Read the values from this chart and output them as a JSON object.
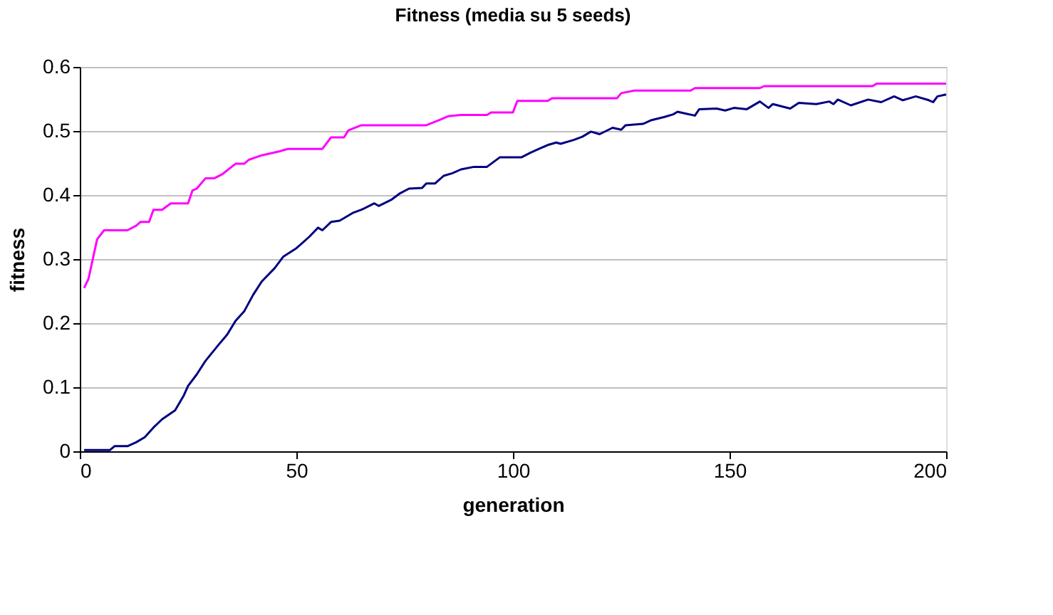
{
  "chart_data": {
    "type": "line",
    "title": "Fitness (media su 5 seeds)",
    "xlabel": "generation",
    "ylabel": "fitness",
    "xlim": [
      0,
      200
    ],
    "xticks": [
      0,
      50,
      100,
      150,
      200
    ],
    "ylim": [
      0,
      0.6
    ],
    "yticks": [
      0,
      0.1,
      0.2,
      0.3,
      0.4,
      0.5,
      0.6
    ],
    "grid": "y",
    "legend": false,
    "marker": "none",
    "line_style": "solid",
    "series": [
      {
        "color": "#ff00ff",
        "x": [
          1,
          2,
          4,
          5.6,
          11,
          13,
          14,
          16,
          17,
          19,
          21,
          25,
          26,
          27,
          29,
          31,
          33,
          36,
          38,
          39,
          42,
          46,
          48,
          56,
          58,
          61,
          62,
          65,
          80,
          83,
          85,
          88,
          94,
          95,
          100,
          101,
          108,
          109,
          124,
          125,
          128,
          141,
          142,
          157,
          158,
          183,
          184,
          200
        ],
        "values": [
          0.255,
          0.269,
          0.331,
          0.345,
          0.345,
          0.352,
          0.358,
          0.358,
          0.377,
          0.377,
          0.387,
          0.387,
          0.407,
          0.41,
          0.426,
          0.426,
          0.433,
          0.449,
          0.449,
          0.455,
          0.462,
          0.468,
          0.472,
          0.472,
          0.49,
          0.49,
          0.501,
          0.509,
          0.509,
          0.517,
          0.523,
          0.525,
          0.525,
          0.529,
          0.529,
          0.547,
          0.547,
          0.551,
          0.551,
          0.559,
          0.563,
          0.563,
          0.567,
          0.567,
          0.57,
          0.57,
          0.574,
          0.574
        ]
      },
      {
        "color": "#000080",
        "x": [
          1,
          7,
          8,
          11,
          13,
          15,
          17,
          19,
          22,
          24,
          25,
          27,
          29,
          32,
          34,
          36,
          38,
          40,
          42,
          45,
          47,
          50,
          51,
          53,
          55,
          56,
          58,
          60,
          63,
          65,
          68,
          69,
          72,
          74,
          76,
          79,
          80,
          82,
          84,
          86,
          88,
          91,
          94,
          97,
          100,
          102,
          104,
          106,
          108,
          110,
          111,
          114,
          116,
          118,
          120,
          123,
          125,
          126,
          130,
          132,
          135,
          137,
          138,
          140,
          142,
          143,
          147,
          149,
          151,
          154,
          157,
          159,
          160,
          164,
          166,
          170,
          173,
          174,
          175,
          178,
          182,
          185,
          188,
          190,
          193,
          196,
          197,
          198,
          200
        ],
        "values": [
          0.002,
          0.002,
          0.008,
          0.008,
          0.014,
          0.022,
          0.037,
          0.05,
          0.064,
          0.087,
          0.102,
          0.12,
          0.141,
          0.166,
          0.182,
          0.204,
          0.219,
          0.244,
          0.265,
          0.286,
          0.304,
          0.317,
          0.323,
          0.335,
          0.349,
          0.345,
          0.358,
          0.36,
          0.372,
          0.377,
          0.387,
          0.383,
          0.393,
          0.403,
          0.41,
          0.411,
          0.418,
          0.418,
          0.43,
          0.434,
          0.44,
          0.444,
          0.444,
          0.459,
          0.459,
          0.459,
          0.466,
          0.472,
          0.478,
          0.482,
          0.48,
          0.486,
          0.491,
          0.499,
          0.495,
          0.505,
          0.502,
          0.509,
          0.511,
          0.517,
          0.522,
          0.526,
          0.53,
          0.527,
          0.524,
          0.534,
          0.535,
          0.532,
          0.536,
          0.534,
          0.546,
          0.536,
          0.542,
          0.535,
          0.544,
          0.542,
          0.546,
          0.542,
          0.549,
          0.54,
          0.549,
          0.545,
          0.554,
          0.548,
          0.554,
          0.548,
          0.545,
          0.554,
          0.557
        ]
      }
    ]
  }
}
